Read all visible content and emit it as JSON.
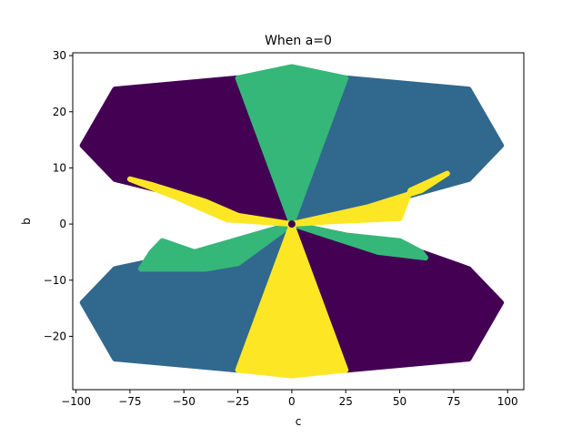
{
  "chart_data": {
    "type": "scatter",
    "title": "When a=0",
    "xlabel": "c",
    "ylabel": "b",
    "xlim": [
      -101.5,
      107.5
    ],
    "ylim": [
      -29.5,
      30.5
    ],
    "x_ticks": [
      -100,
      -75,
      -50,
      -25,
      0,
      25,
      50,
      75,
      100
    ],
    "x_tick_labels": [
      "−100",
      "−75",
      "−50",
      "−25",
      "0",
      "25",
      "50",
      "75",
      "100"
    ],
    "y_ticks": [
      -20,
      -10,
      0,
      10,
      20,
      30
    ],
    "y_tick_labels": [
      "−20",
      "−10",
      "0",
      "10",
      "20",
      "30"
    ],
    "grid": false,
    "colors": {
      "purple": "#440154",
      "blue": "#31688e",
      "green": "#35b779",
      "yellow": "#fde725"
    },
    "regions": [
      {
        "color": "purple",
        "polygon": [
          [
            0,
            0
          ],
          [
            -25,
            26
          ],
          [
            -82,
            24
          ],
          [
            -97,
            14
          ],
          [
            -82,
            8
          ],
          [
            -40,
            4
          ],
          [
            -25,
            1.5
          ]
        ]
      },
      {
        "color": "purple",
        "polygon": [
          [
            0,
            0
          ],
          [
            25,
            -26
          ],
          [
            82,
            -24
          ],
          [
            97,
            -14
          ],
          [
            82,
            -8
          ],
          [
            60,
            -5
          ],
          [
            25,
            -2
          ]
        ]
      },
      {
        "color": "blue",
        "polygon": [
          [
            0,
            0
          ],
          [
            25,
            26
          ],
          [
            82,
            24
          ],
          [
            97,
            14
          ],
          [
            82,
            8
          ],
          [
            35,
            3
          ]
        ]
      },
      {
        "color": "blue",
        "polygon": [
          [
            0,
            0
          ],
          [
            -25,
            -26
          ],
          [
            -82,
            -24
          ],
          [
            -97,
            -14
          ],
          [
            -82,
            -8
          ],
          [
            -45,
            -5
          ]
        ]
      },
      {
        "color": "green",
        "polygon": [
          [
            0,
            0
          ],
          [
            -25,
            26
          ],
          [
            0,
            28
          ],
          [
            25,
            26
          ]
        ]
      },
      {
        "color": "green",
        "polygon": [
          [
            0,
            0
          ],
          [
            -45,
            -5
          ],
          [
            -60,
            -3
          ],
          [
            -65,
            -5
          ],
          [
            -70,
            -8
          ],
          [
            -40,
            -8
          ],
          [
            -25,
            -7
          ]
        ]
      },
      {
        "color": "green",
        "polygon": [
          [
            0,
            0
          ],
          [
            25,
            -2
          ],
          [
            50,
            -3
          ],
          [
            60,
            -5
          ],
          [
            62,
            -6
          ],
          [
            40,
            -5
          ]
        ]
      },
      {
        "color": "yellow",
        "polygon": [
          [
            0,
            0
          ],
          [
            25,
            -26
          ],
          [
            0,
            -27
          ],
          [
            -25,
            -26
          ]
        ]
      },
      {
        "color": "yellow",
        "polygon": [
          [
            0,
            0
          ],
          [
            -25,
            1.5
          ],
          [
            -40,
            4
          ],
          [
            -65,
            7
          ],
          [
            -75,
            8
          ],
          [
            -55,
            5
          ],
          [
            -30,
            0.8
          ]
        ]
      },
      {
        "color": "yellow",
        "polygon": [
          [
            0,
            0
          ],
          [
            35,
            3
          ],
          [
            60,
            6
          ],
          [
            72,
            9
          ],
          [
            55,
            6
          ],
          [
            50,
            1
          ],
          [
            20,
            0.5
          ]
        ]
      }
    ],
    "center_point": {
      "x": 0,
      "y": 0,
      "color": "purple"
    }
  }
}
